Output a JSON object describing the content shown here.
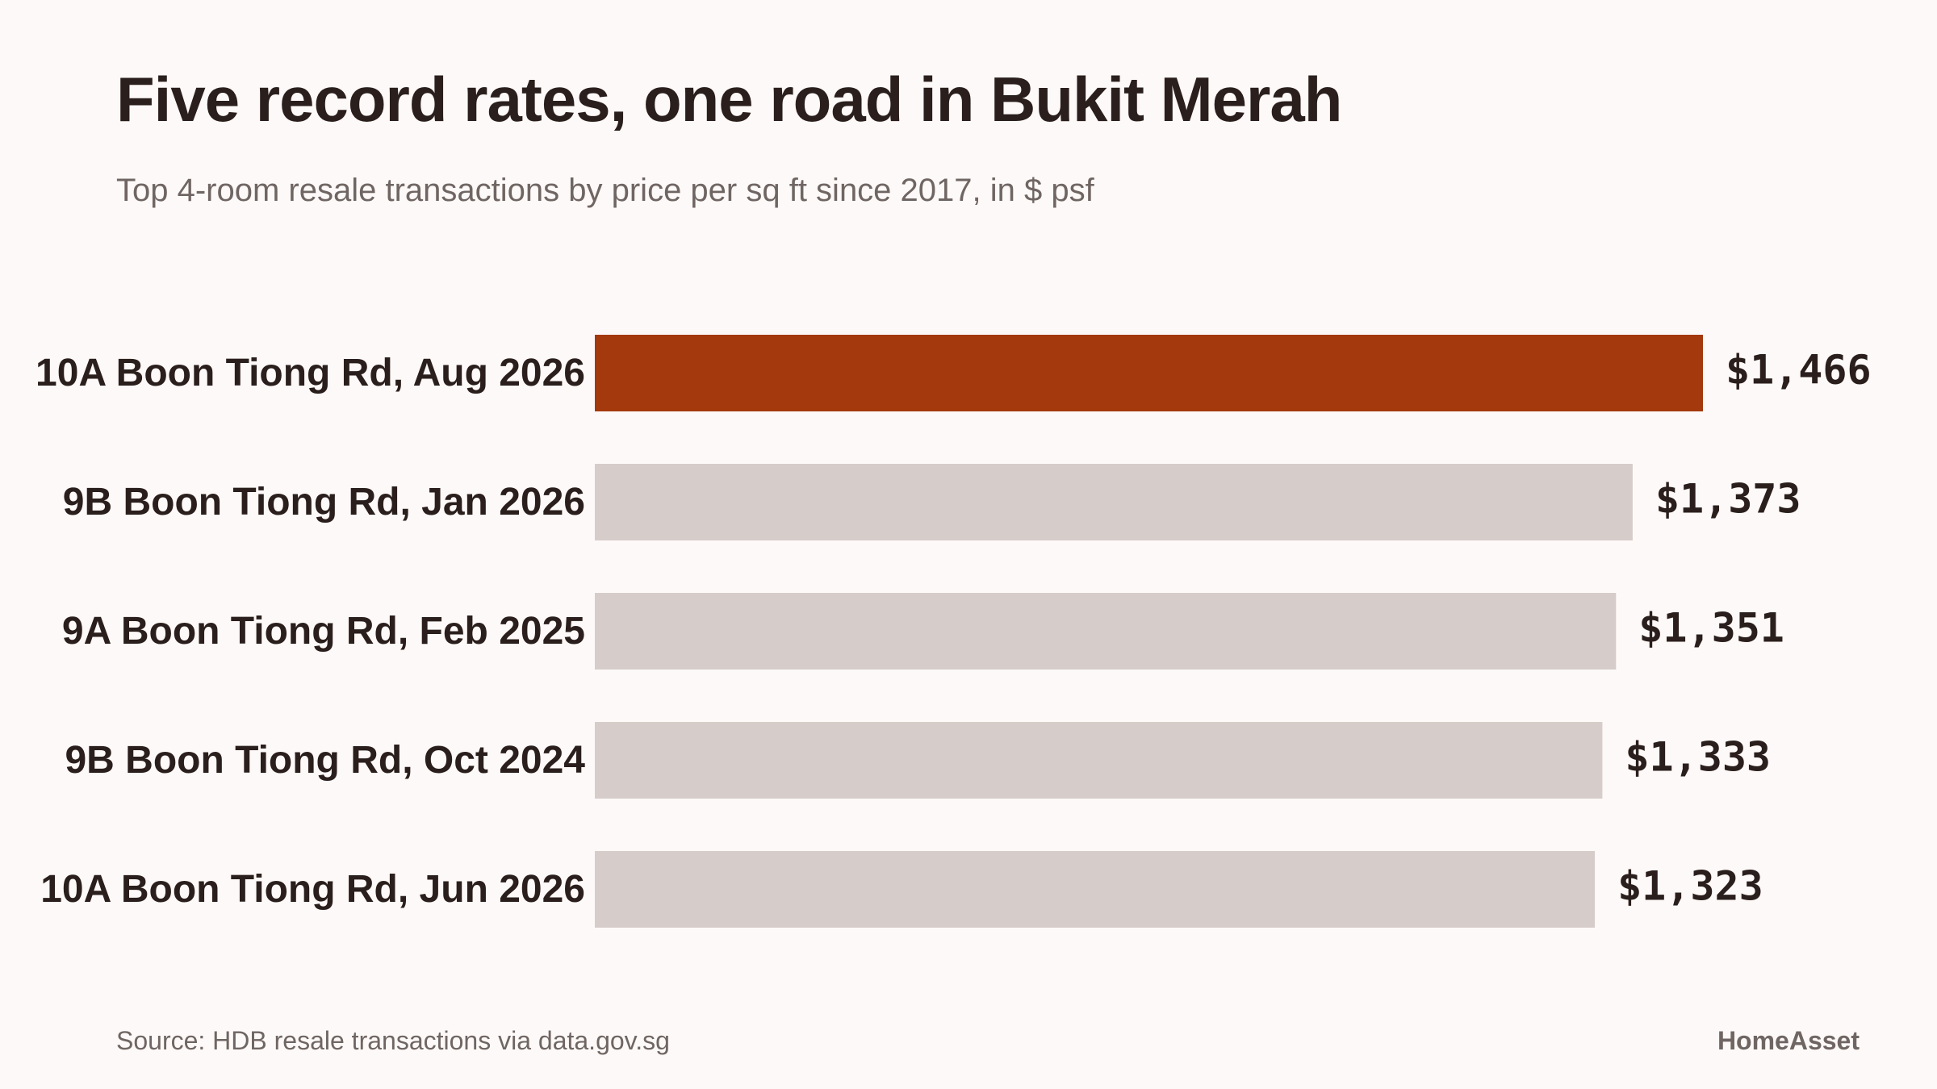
{
  "chart_data": {
    "type": "bar",
    "orientation": "horizontal",
    "title": "Five record rates, one road in Bukit Merah",
    "subtitle": "Top 4-room resale transactions by price per sq ft since 2017, in $ psf",
    "categories": [
      "10A Boon Tiong Rd, Aug 2026",
      "9B Boon Tiong Rd, Jan 2026",
      "9A Boon Tiong Rd, Feb 2025",
      "9B Boon Tiong Rd, Oct 2024",
      "10A Boon Tiong Rd, Jun 2026"
    ],
    "values": [
      1466,
      1373,
      1351,
      1333,
      1323
    ],
    "value_labels": [
      "$1,466",
      "$1,373",
      "$1,351",
      "$1,333",
      "$1,323"
    ],
    "highlight_index": 0,
    "colors": {
      "highlight": "#a3390d",
      "default": "#d6cdca"
    },
    "xlim": [
      0,
      1466
    ],
    "grid": false,
    "legend": "none"
  },
  "footer": {
    "source": "Source: HDB resale transactions via data.gov.sg",
    "brand": "HomeAsset"
  }
}
